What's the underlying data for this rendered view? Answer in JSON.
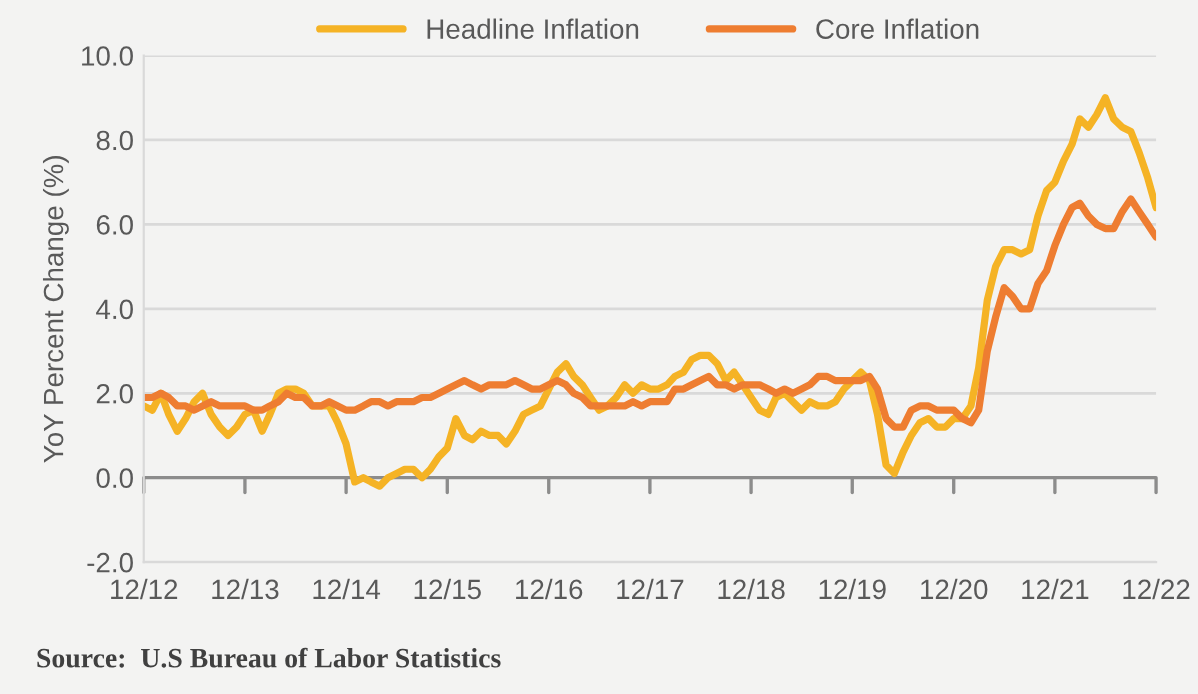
{
  "chart_data": {
    "type": "line",
    "ylabel": "YoY Percent Change (%)",
    "x": [
      "2012-12",
      "2013-01",
      "2013-02",
      "2013-03",
      "2013-04",
      "2013-05",
      "2013-06",
      "2013-07",
      "2013-08",
      "2013-09",
      "2013-10",
      "2013-11",
      "2013-12",
      "2014-01",
      "2014-02",
      "2014-03",
      "2014-04",
      "2014-05",
      "2014-06",
      "2014-07",
      "2014-08",
      "2014-09",
      "2014-10",
      "2014-11",
      "2014-12",
      "2015-01",
      "2015-02",
      "2015-03",
      "2015-04",
      "2015-05",
      "2015-06",
      "2015-07",
      "2015-08",
      "2015-09",
      "2015-10",
      "2015-11",
      "2015-12",
      "2016-01",
      "2016-02",
      "2016-03",
      "2016-04",
      "2016-05",
      "2016-06",
      "2016-07",
      "2016-08",
      "2016-09",
      "2016-10",
      "2016-11",
      "2016-12",
      "2017-01",
      "2017-02",
      "2017-03",
      "2017-04",
      "2017-05",
      "2017-06",
      "2017-07",
      "2017-08",
      "2017-09",
      "2017-10",
      "2017-11",
      "2017-12",
      "2018-01",
      "2018-02",
      "2018-03",
      "2018-04",
      "2018-05",
      "2018-06",
      "2018-07",
      "2018-08",
      "2018-09",
      "2018-10",
      "2018-11",
      "2018-12",
      "2019-01",
      "2019-02",
      "2019-03",
      "2019-04",
      "2019-05",
      "2019-06",
      "2019-07",
      "2019-08",
      "2019-09",
      "2019-10",
      "2019-11",
      "2019-12",
      "2020-01",
      "2020-02",
      "2020-03",
      "2020-04",
      "2020-05",
      "2020-06",
      "2020-07",
      "2020-08",
      "2020-09",
      "2020-10",
      "2020-11",
      "2020-12",
      "2021-01",
      "2021-02",
      "2021-03",
      "2021-04",
      "2021-05",
      "2021-06",
      "2021-07",
      "2021-08",
      "2021-09",
      "2021-10",
      "2021-11",
      "2021-12",
      "2022-01",
      "2022-02",
      "2022-03",
      "2022-04",
      "2022-05",
      "2022-06",
      "2022-07",
      "2022-08",
      "2022-09",
      "2022-10",
      "2022-11",
      "2022-12"
    ],
    "series": [
      {
        "name": "Headline Inflation",
        "color": "#f5b325",
        "values": [
          1.7,
          1.6,
          2.0,
          1.5,
          1.1,
          1.4,
          1.8,
          2.0,
          1.5,
          1.2,
          1.0,
          1.2,
          1.5,
          1.6,
          1.1,
          1.5,
          2.0,
          2.1,
          2.1,
          2.0,
          1.7,
          1.7,
          1.7,
          1.3,
          0.8,
          -0.1,
          0.0,
          -0.1,
          -0.2,
          0.0,
          0.1,
          0.2,
          0.2,
          0.0,
          0.2,
          0.5,
          0.7,
          1.4,
          1.0,
          0.9,
          1.1,
          1.0,
          1.0,
          0.8,
          1.1,
          1.5,
          1.6,
          1.7,
          2.1,
          2.5,
          2.7,
          2.4,
          2.2,
          1.9,
          1.6,
          1.7,
          1.9,
          2.2,
          2.0,
          2.2,
          2.1,
          2.1,
          2.2,
          2.4,
          2.5,
          2.8,
          2.9,
          2.9,
          2.7,
          2.3,
          2.5,
          2.2,
          1.9,
          1.6,
          1.5,
          1.9,
          2.0,
          1.8,
          1.6,
          1.8,
          1.7,
          1.7,
          1.8,
          2.1,
          2.3,
          2.5,
          2.3,
          1.5,
          0.3,
          0.1,
          0.6,
          1.0,
          1.3,
          1.4,
          1.2,
          1.2,
          1.4,
          1.4,
          1.7,
          2.6,
          4.2,
          5.0,
          5.4,
          5.4,
          5.3,
          5.4,
          6.2,
          6.8,
          7.0,
          7.5,
          7.9,
          8.5,
          8.3,
          8.6,
          9.0,
          8.5,
          8.3,
          8.2,
          7.7,
          7.1,
          6.4
        ]
      },
      {
        "name": "Core Inflation",
        "color": "#ee7d31",
        "values": [
          1.9,
          1.9,
          2.0,
          1.9,
          1.7,
          1.7,
          1.6,
          1.7,
          1.8,
          1.7,
          1.7,
          1.7,
          1.7,
          1.6,
          1.6,
          1.7,
          1.8,
          2.0,
          1.9,
          1.9,
          1.7,
          1.7,
          1.8,
          1.7,
          1.6,
          1.6,
          1.7,
          1.8,
          1.8,
          1.7,
          1.8,
          1.8,
          1.8,
          1.9,
          1.9,
          2.0,
          2.1,
          2.2,
          2.3,
          2.2,
          2.1,
          2.2,
          2.2,
          2.2,
          2.3,
          2.2,
          2.1,
          2.1,
          2.2,
          2.3,
          2.2,
          2.0,
          1.9,
          1.7,
          1.7,
          1.7,
          1.7,
          1.7,
          1.8,
          1.7,
          1.8,
          1.8,
          1.8,
          2.1,
          2.1,
          2.2,
          2.3,
          2.4,
          2.2,
          2.2,
          2.1,
          2.2,
          2.2,
          2.2,
          2.1,
          2.0,
          2.1,
          2.0,
          2.1,
          2.2,
          2.4,
          2.4,
          2.3,
          2.3,
          2.3,
          2.3,
          2.4,
          2.1,
          1.4,
          1.2,
          1.2,
          1.6,
          1.7,
          1.7,
          1.6,
          1.6,
          1.6,
          1.4,
          1.3,
          1.6,
          3.0,
          3.8,
          4.5,
          4.3,
          4.0,
          4.0,
          4.6,
          4.9,
          5.5,
          6.0,
          6.4,
          6.5,
          6.2,
          6.0,
          5.9,
          5.9,
          6.3,
          6.6,
          6.3,
          6.0,
          5.7
        ]
      }
    ],
    "xlim": [
      "2012-12",
      "2022-12"
    ],
    "xticks": [
      {
        "value": "2012-12",
        "label": "12/12"
      },
      {
        "value": "2013-12",
        "label": "12/13"
      },
      {
        "value": "2014-12",
        "label": "12/14"
      },
      {
        "value": "2015-12",
        "label": "12/15"
      },
      {
        "value": "2016-12",
        "label": "12/16"
      },
      {
        "value": "2017-12",
        "label": "12/17"
      },
      {
        "value": "2018-12",
        "label": "12/18"
      },
      {
        "value": "2019-12",
        "label": "12/19"
      },
      {
        "value": "2020-12",
        "label": "12/20"
      },
      {
        "value": "2021-12",
        "label": "12/21"
      },
      {
        "value": "2022-12",
        "label": "12/22"
      }
    ],
    "ylim": [
      -2,
      10
    ],
    "yticks": [
      {
        "value": -2,
        "label": "-2.0"
      },
      {
        "value": 0,
        "label": "0.0"
      },
      {
        "value": 2,
        "label": "2.0"
      },
      {
        "value": 4,
        "label": "4.0"
      },
      {
        "value": 6,
        "label": "6.0"
      },
      {
        "value": 8,
        "label": "8.0"
      },
      {
        "value": 10,
        "label": "10.0"
      }
    ],
    "grid": "y",
    "legend": "top",
    "line_style": "solid",
    "annotations": [
      "Source:  U.S Bureau of Labor Statistics"
    ]
  }
}
